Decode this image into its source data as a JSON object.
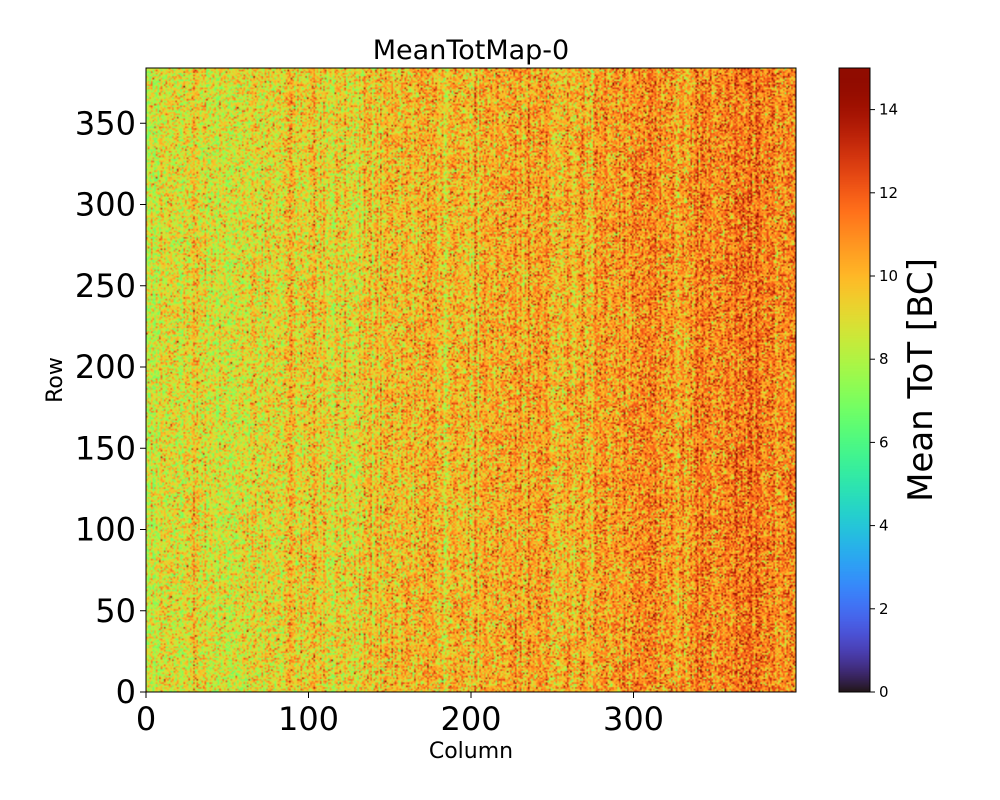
{
  "chart_data": {
    "type": "heatmap",
    "title": "MeanTotMap-0",
    "xlabel": "Column",
    "ylabel": "Row",
    "xlim": [
      0,
      400
    ],
    "ylim": [
      0,
      384
    ],
    "x_ticks": [
      0,
      100,
      200,
      300
    ],
    "y_ticks": [
      0,
      50,
      100,
      150,
      200,
      250,
      300,
      350
    ],
    "colorbar": {
      "label": "Mean ToT [BC]",
      "range": [
        0,
        15
      ],
      "ticks": [
        0,
        2,
        4,
        6,
        8,
        10,
        12,
        14
      ],
      "colormap": "turbo"
    },
    "value_summary": {
      "typical_range": [
        7,
        14
      ],
      "mean_trend": "increases from ~8.5 at column 0 to ~11.5 at column 400"
    }
  }
}
